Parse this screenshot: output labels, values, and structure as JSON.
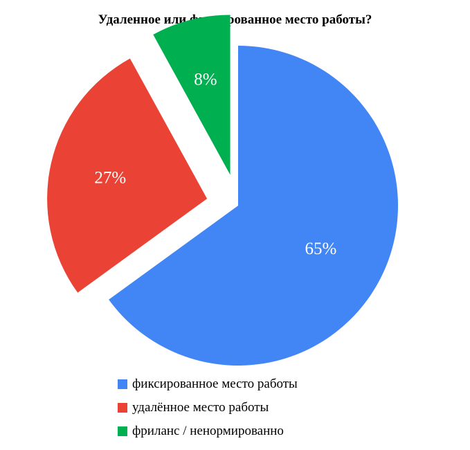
{
  "chart_data": {
    "type": "pie",
    "title": "Удаленное или фиксированное место работы?",
    "start_angle_deg": 0,
    "direction": "clockwise",
    "exploded": true,
    "legend_position": "bottom",
    "slices": [
      {
        "name": "фиксированное место работы",
        "value": 65,
        "label": "65%",
        "color": "#4285F4"
      },
      {
        "name": "удалённое место работы",
        "value": 27,
        "label": "27%",
        "color": "#EA4335"
      },
      {
        "name": "фриланс / ненормированно",
        "value": 8,
        "label": "8%",
        "color": "#00B050"
      }
    ]
  }
}
